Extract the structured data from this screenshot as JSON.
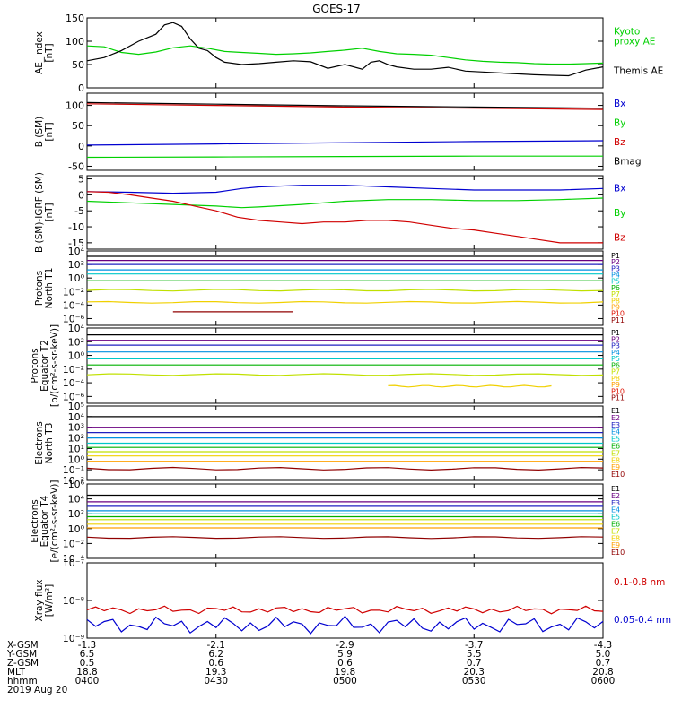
{
  "title": "GOES-17",
  "chart_data": [
    {
      "type": "line",
      "panel": "ae_index",
      "ylabel": [
        "AE_index",
        "[nT]"
      ],
      "ylim": [
        0,
        150
      ],
      "yticks": [
        {
          "v": 0,
          "t": "0"
        },
        {
          "v": 50,
          "t": "50"
        },
        {
          "v": 100,
          "t": "100"
        },
        {
          "v": 150,
          "t": "150"
        }
      ],
      "series": [
        {
          "name": "Kyoto proxy AE",
          "label_lines": [
            "Kyoto",
            "proxy AE"
          ],
          "color": "#00d000",
          "x": [
            0,
            4,
            8,
            12,
            16,
            20,
            24,
            28,
            32,
            36,
            40,
            44,
            48,
            52,
            56,
            60,
            64,
            68,
            72,
            76,
            80,
            84,
            88,
            92,
            96,
            100,
            104,
            108,
            112,
            116,
            120
          ],
          "y": [
            90,
            88,
            76,
            72,
            77,
            86,
            90,
            85,
            78,
            76,
            74,
            72,
            73,
            75,
            78,
            81,
            85,
            78,
            73,
            72,
            70,
            65,
            60,
            57,
            55,
            54,
            52,
            51,
            51,
            52,
            53
          ]
        },
        {
          "name": "Themis AE",
          "label_lines": [
            "Themis AE"
          ],
          "color": "#000000",
          "x": [
            0,
            4,
            8,
            12,
            16,
            18,
            20,
            22,
            24,
            26,
            28,
            30,
            32,
            36,
            40,
            44,
            48,
            52,
            56,
            60,
            64,
            66,
            68,
            70,
            72,
            76,
            80,
            84,
            88,
            92,
            96,
            100,
            104,
            108,
            112,
            116,
            120
          ],
          "y": [
            58,
            65,
            80,
            100,
            115,
            135,
            140,
            132,
            105,
            85,
            80,
            65,
            55,
            50,
            52,
            55,
            58,
            56,
            42,
            50,
            40,
            55,
            58,
            50,
            45,
            40,
            40,
            44,
            36,
            34,
            32,
            30,
            28,
            27,
            26,
            38,
            45
          ]
        }
      ]
    },
    {
      "type": "line",
      "panel": "b_sm",
      "ylabel": [
        "B (SM)",
        "[nT]"
      ],
      "ylim": [
        -60,
        130
      ],
      "yticks": [
        {
          "v": -50,
          "t": "-50"
        },
        {
          "v": 0,
          "t": "0"
        },
        {
          "v": 50,
          "t": "50"
        },
        {
          "v": 100,
          "t": "100"
        }
      ],
      "series": [
        {
          "name": "Bx",
          "label_lines": [
            "Bx"
          ],
          "color": "#0000d0",
          "x": [
            0,
            30,
            60,
            90,
            120
          ],
          "y": [
            2,
            5,
            8,
            11,
            13
          ]
        },
        {
          "name": "By",
          "label_lines": [
            "By"
          ],
          "color": "#00d000",
          "x": [
            0,
            30,
            60,
            90,
            120
          ],
          "y": [
            -28,
            -27,
            -26,
            -25,
            -25
          ]
        },
        {
          "name": "Bz",
          "label_lines": [
            "Bz"
          ],
          "color": "#d00000",
          "x": [
            0,
            30,
            60,
            90,
            120
          ],
          "y": [
            104,
            100,
            96,
            93,
            90
          ]
        },
        {
          "name": "Bmag",
          "label_lines": [
            "Bmag"
          ],
          "color": "#000000",
          "x": [
            0,
            30,
            60,
            90,
            120
          ],
          "y": [
            107,
            103,
            99,
            96,
            93
          ]
        }
      ]
    },
    {
      "type": "line",
      "panel": "b_minus_igrf",
      "ylabel": [
        "B (SM)-IGRF (SM)",
        "[nT]"
      ],
      "ylim": [
        -17,
        6
      ],
      "yticks": [
        {
          "v": -15,
          "t": "-15"
        },
        {
          "v": -10,
          "t": "-10"
        },
        {
          "v": -5,
          "t": "-5"
        },
        {
          "v": 0,
          "t": "0"
        },
        {
          "v": 5,
          "t": "5"
        }
      ],
      "series": [
        {
          "name": "Bx",
          "label_lines": [
            "Bx"
          ],
          "color": "#0000d0",
          "x": [
            0,
            10,
            20,
            30,
            36,
            40,
            50,
            60,
            70,
            80,
            90,
            100,
            110,
            120
          ],
          "y": [
            1,
            0.8,
            0.5,
            0.8,
            2,
            2.5,
            3,
            3,
            2.5,
            2,
            1.5,
            1.5,
            1.5,
            2
          ]
        },
        {
          "name": "By",
          "label_lines": [
            "By"
          ],
          "color": "#00d000",
          "x": [
            0,
            10,
            20,
            30,
            36,
            40,
            50,
            60,
            70,
            80,
            90,
            100,
            110,
            120
          ],
          "y": [
            -2,
            -2.5,
            -3,
            -3.5,
            -4,
            -3.8,
            -3,
            -2,
            -1.5,
            -1.5,
            -1.8,
            -1.8,
            -1.5,
            -1
          ]
        },
        {
          "name": "Bz",
          "label_lines": [
            "Bz"
          ],
          "color": "#d00000",
          "x": [
            0,
            5,
            10,
            15,
            20,
            25,
            30,
            35,
            40,
            45,
            50,
            55,
            60,
            65,
            70,
            75,
            80,
            85,
            90,
            95,
            100,
            105,
            110,
            115,
            120
          ],
          "y": [
            1,
            0.8,
            0,
            -1,
            -2,
            -3.5,
            -5,
            -7,
            -8,
            -8.5,
            -9,
            -8.5,
            -8.5,
            -8,
            -8,
            -8.5,
            -9.5,
            -10.5,
            -11,
            -12,
            -13,
            -14,
            -15,
            -15,
            -15
          ]
        }
      ]
    },
    {
      "type": "line",
      "panel": "protons_t1",
      "ylabel": [
        "Protons",
        "North T1"
      ],
      "log": true,
      "ylim_log10": [
        -7,
        4
      ],
      "yticks": [
        {
          "e": 4,
          "t": "10⁴"
        },
        {
          "e": 2,
          "t": "10²"
        },
        {
          "e": 0,
          "t": "10⁰"
        },
        {
          "e": -2,
          "t": "10⁻²"
        },
        {
          "e": -4,
          "t": "10⁻⁴"
        },
        {
          "e": -6,
          "t": "10⁻⁶"
        }
      ],
      "series": [
        {
          "name": "P1",
          "color": "#000000",
          "log10": 3.2
        },
        {
          "name": "P2",
          "color": "#6a0080",
          "log10": 2.6
        },
        {
          "name": "P3",
          "color": "#2020c0",
          "log10": 2.0
        },
        {
          "name": "P4",
          "color": "#0090e0",
          "log10": 1.2
        },
        {
          "name": "P5",
          "color": "#00c8c8",
          "log10": 0.6
        },
        {
          "name": "P6",
          "color": "#00b000",
          "log10": -0.4
        },
        {
          "name": "P7",
          "color": "#c0e000",
          "log10": -1.8
        },
        {
          "name": "P8",
          "color": "#f0d000",
          "log10": -3.6
        },
        {
          "name": "P9",
          "color": "#ffa000",
          "log10": null
        },
        {
          "name": "P10",
          "color": "#e01000",
          "log10": null
        },
        {
          "name": "P11",
          "color": "#900000",
          "log10": -5.0,
          "x_range": [
            20,
            48
          ]
        }
      ]
    },
    {
      "type": "line",
      "panel": "protons_t2",
      "ylabel": [
        "Protons",
        "Equator T2",
        "[p/(cm²-s-sr-keV)]"
      ],
      "log": true,
      "ylim_log10": [
        -7,
        4
      ],
      "yticks": [
        {
          "e": 4,
          "t": "10⁴"
        },
        {
          "e": 2,
          "t": "10²"
        },
        {
          "e": 0,
          "t": "10⁰"
        },
        {
          "e": -2,
          "t": "10⁻²"
        },
        {
          "e": -4,
          "t": "10⁻⁴"
        },
        {
          "e": -6,
          "t": "10⁻⁶"
        }
      ],
      "series": [
        {
          "name": "P1",
          "color": "#000000",
          "log10": 3.0
        },
        {
          "name": "P2",
          "color": "#6a0080",
          "log10": 2.2
        },
        {
          "name": "P3",
          "color": "#2020c0",
          "log10": 1.5
        },
        {
          "name": "P4",
          "color": "#0090e0",
          "log10": 0.5
        },
        {
          "name": "P5",
          "color": "#00c8c8",
          "log10": -0.5
        },
        {
          "name": "P6",
          "color": "#00b000",
          "log10": -1.4
        },
        {
          "name": "P7",
          "color": "#c0e000",
          "log10": -2.8
        },
        {
          "name": "P8",
          "color": "#f0d000",
          "log10": -4.5,
          "x_range": [
            70,
            108
          ]
        },
        {
          "name": "P9",
          "color": "#ffa000",
          "log10": null
        },
        {
          "name": "P10",
          "color": "#e01000",
          "log10": null
        },
        {
          "name": "P11",
          "color": "#900000",
          "log10": null
        }
      ]
    },
    {
      "type": "line",
      "panel": "electrons_t3",
      "ylabel": [
        "Electrons",
        "North T3"
      ],
      "log": true,
      "ylim_log10": [
        -2,
        5
      ],
      "yticks": [
        {
          "e": 5,
          "t": "10⁵"
        },
        {
          "e": 4,
          "t": "10⁴"
        },
        {
          "e": 3,
          "t": "10³"
        },
        {
          "e": 2,
          "t": "10²"
        },
        {
          "e": 1,
          "t": "10¹"
        },
        {
          "e": 0,
          "t": "10⁰"
        },
        {
          "e": -1,
          "t": "10⁻¹"
        },
        {
          "e": -2,
          "t": "10⁻²"
        }
      ],
      "series": [
        {
          "name": "E1",
          "color": "#000000",
          "log10": 4.0
        },
        {
          "name": "E2",
          "color": "#6a0080",
          "log10": 3.0
        },
        {
          "name": "E3",
          "color": "#2020c0",
          "log10": 2.5
        },
        {
          "name": "E4",
          "color": "#0090e0",
          "log10": 2.0
        },
        {
          "name": "E5",
          "color": "#00c8c8",
          "log10": 1.5
        },
        {
          "name": "E6",
          "color": "#00b000",
          "log10": 1.1
        },
        {
          "name": "E7",
          "color": "#c0e000",
          "log10": 0.7
        },
        {
          "name": "E8",
          "color": "#f0d000",
          "log10": 0.3
        },
        {
          "name": "E9",
          "color": "#ffa000",
          "log10": -0.2
        },
        {
          "name": "E10",
          "color": "#900000",
          "log10": -0.9
        }
      ]
    },
    {
      "type": "line",
      "panel": "electrons_t4",
      "ylabel": [
        "Electrons",
        "Equator T4",
        "[e/(cm²-s-sr-keV)]"
      ],
      "log": true,
      "ylim_log10": [
        -4,
        6
      ],
      "yticks": [
        {
          "e": 6,
          "t": "10⁶"
        },
        {
          "e": 4,
          "t": "10⁴"
        },
        {
          "e": 2,
          "t": "10²"
        },
        {
          "e": 0,
          "t": "10⁰"
        },
        {
          "e": -2,
          "t": "10⁻²"
        },
        {
          "e": -4,
          "t": "10⁻⁴"
        }
      ],
      "series": [
        {
          "name": "E1",
          "color": "#000000",
          "log10": 4.5
        },
        {
          "name": "E2",
          "color": "#6a0080",
          "log10": 3.6
        },
        {
          "name": "E3",
          "color": "#2020c0",
          "log10": 3.0
        },
        {
          "name": "E4",
          "color": "#0090e0",
          "log10": 2.4
        },
        {
          "name": "E5",
          "color": "#00c8c8",
          "log10": 2.0
        },
        {
          "name": "E6",
          "color": "#00b000",
          "log10": 1.6
        },
        {
          "name": "E7",
          "color": "#c0e000",
          "log10": 1.2
        },
        {
          "name": "E8",
          "color": "#f0d000",
          "log10": 0.6
        },
        {
          "name": "E9",
          "color": "#ffa000",
          "log10": 0.1
        },
        {
          "name": "E10",
          "color": "#900000",
          "log10": -1.2
        }
      ]
    },
    {
      "type": "line",
      "panel": "xray_flux",
      "ylabel": [
        "Xray flux",
        "[W/m²]"
      ],
      "log": true,
      "ylim_log10": [
        -9,
        -7
      ],
      "yticks": [
        {
          "e": -7,
          "t": "10⁻⁷"
        },
        {
          "e": -8,
          "t": "10⁻⁸"
        },
        {
          "e": -9,
          "t": "10⁻⁹"
        }
      ],
      "series": [
        {
          "name": "0.1-0.8 nm",
          "color": "#d00000",
          "log10": -8.25
        },
        {
          "name": "0.05-0.4 nm",
          "color": "#0000d0",
          "log10": -8.65
        }
      ]
    }
  ],
  "x_axis": {
    "minutes_range": [
      0,
      120
    ],
    "row_labels": [
      "X-GSM",
      "Y-GSM",
      "Z-GSM",
      "MLT",
      "hhmm",
      "2019 Aug 20"
    ],
    "columns": [
      {
        "m": 0,
        "vals": [
          "-1.3",
          "6.5",
          "0.5",
          "18.8",
          "0400"
        ]
      },
      {
        "m": 30,
        "vals": [
          "-2.1",
          "6.2",
          "0.6",
          "19.3",
          "0430"
        ]
      },
      {
        "m": 60,
        "vals": [
          "-2.9",
          "5.9",
          "0.6",
          "19.8",
          "0500"
        ]
      },
      {
        "m": 90,
        "vals": [
          "-3.7",
          "5.5",
          "0.7",
          "20.3",
          "0530"
        ]
      },
      {
        "m": 120,
        "vals": [
          "-4.3",
          "5.0",
          "0.7",
          "20.8",
          "0600"
        ]
      }
    ]
  }
}
